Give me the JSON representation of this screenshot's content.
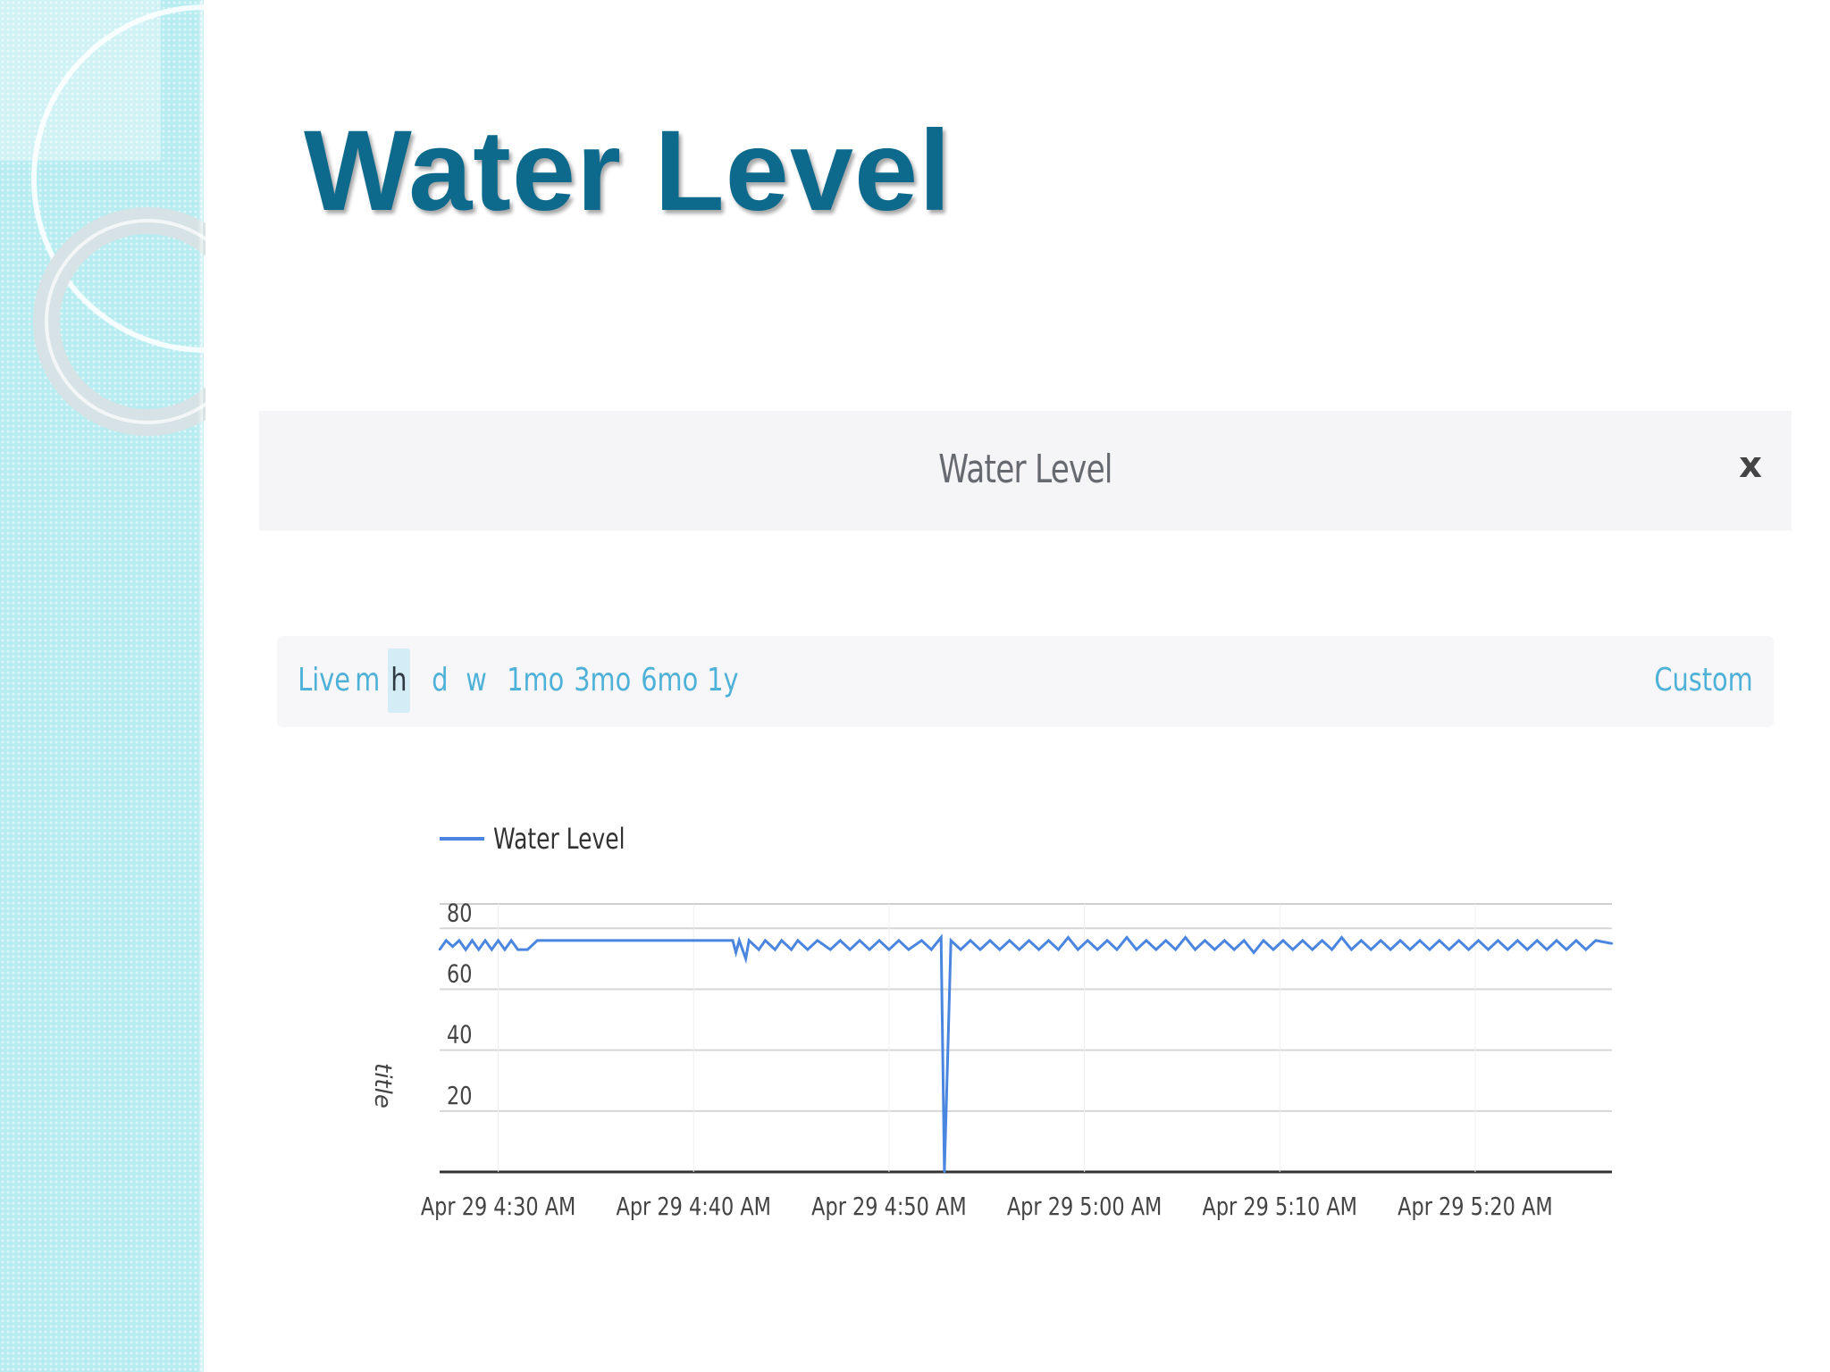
{
  "slide": {
    "title": "Water Level"
  },
  "panel": {
    "title": "Water Level",
    "close_label": "x"
  },
  "range_selector": {
    "options": [
      "Live",
      "m",
      "h",
      "d",
      "w",
      "1mo",
      "3mo",
      "6mo",
      "1y"
    ],
    "active": "h",
    "custom_label": "Custom"
  },
  "colors": {
    "title": "#0e6a8c",
    "series": "#4a86e0",
    "range_link": "#4db1d8",
    "side_band": "#b7ecf0"
  },
  "chart_data": {
    "type": "line",
    "title": "",
    "xlabel": "",
    "ylabel": "title",
    "legend": {
      "position": "top-left",
      "entries": [
        "Water Level"
      ]
    },
    "grid": true,
    "ylim": [
      0,
      88
    ],
    "yticks": [
      20,
      40,
      60,
      80
    ],
    "xlim": [
      "2024-04-29T04:27",
      "2024-04-29T05:27"
    ],
    "xticks": [
      {
        "t": "2024-04-29T04:30",
        "label": "Apr 29 4:30 AM"
      },
      {
        "t": "2024-04-29T04:40",
        "label": "Apr 29 4:40 AM"
      },
      {
        "t": "2024-04-29T04:50",
        "label": "Apr 29 4:50 AM"
      },
      {
        "t": "2024-04-29T05:00",
        "label": "Apr 29 5:00 AM"
      },
      {
        "t": "2024-04-29T05:10",
        "label": "Apr 29 5:10 AM"
      },
      {
        "t": "2024-04-29T05:20",
        "label": "Apr 29 5:20 AM"
      }
    ],
    "series": [
      {
        "name": "Water Level",
        "points": [
          [
            "2024-04-29T04:27:00",
            73
          ],
          [
            "2024-04-29T04:27:20",
            76
          ],
          [
            "2024-04-29T04:27:40",
            74
          ],
          [
            "2024-04-29T04:28:00",
            76
          ],
          [
            "2024-04-29T04:28:20",
            73
          ],
          [
            "2024-04-29T04:28:40",
            76
          ],
          [
            "2024-04-29T04:29:00",
            73
          ],
          [
            "2024-04-29T04:29:20",
            76
          ],
          [
            "2024-04-29T04:29:40",
            73
          ],
          [
            "2024-04-29T04:30:00",
            76
          ],
          [
            "2024-04-29T04:30:20",
            73
          ],
          [
            "2024-04-29T04:30:40",
            76
          ],
          [
            "2024-04-29T04:31:00",
            73
          ],
          [
            "2024-04-29T04:31:30",
            73
          ],
          [
            "2024-04-29T04:32:00",
            76
          ],
          [
            "2024-04-29T04:33:00",
            76
          ],
          [
            "2024-04-29T04:35:00",
            76
          ],
          [
            "2024-04-29T04:38:00",
            76
          ],
          [
            "2024-04-29T04:41:00",
            76
          ],
          [
            "2024-04-29T04:42:00",
            76
          ],
          [
            "2024-04-29T04:42:10",
            72
          ],
          [
            "2024-04-29T04:42:20",
            76
          ],
          [
            "2024-04-29T04:42:40",
            70
          ],
          [
            "2024-04-29T04:42:50",
            76
          ],
          [
            "2024-04-29T04:43:20",
            73
          ],
          [
            "2024-04-29T04:43:40",
            76
          ],
          [
            "2024-04-29T04:44:10",
            73
          ],
          [
            "2024-04-29T04:44:30",
            76
          ],
          [
            "2024-04-29T04:45:00",
            73
          ],
          [
            "2024-04-29T04:45:20",
            76
          ],
          [
            "2024-04-29T04:45:50",
            73
          ],
          [
            "2024-04-29T04:46:20",
            76
          ],
          [
            "2024-04-29T04:47:00",
            73
          ],
          [
            "2024-04-29T04:47:30",
            76
          ],
          [
            "2024-04-29T04:48:00",
            73
          ],
          [
            "2024-04-29T04:48:30",
            76
          ],
          [
            "2024-04-29T04:49:00",
            73
          ],
          [
            "2024-04-29T04:49:30",
            76
          ],
          [
            "2024-04-29T04:50:00",
            73
          ],
          [
            "2024-04-29T04:50:30",
            76
          ],
          [
            "2024-04-29T04:51:00",
            73
          ],
          [
            "2024-04-29T04:51:40",
            76
          ],
          [
            "2024-04-29T04:52:10",
            73
          ],
          [
            "2024-04-29T04:52:40",
            77
          ],
          [
            "2024-04-29T04:52:50",
            0
          ],
          [
            "2024-04-29T04:53:00",
            37
          ],
          [
            "2024-04-29T04:53:10",
            76
          ],
          [
            "2024-04-29T04:53:40",
            73
          ],
          [
            "2024-04-29T04:54:10",
            76
          ],
          [
            "2024-04-29T04:54:40",
            73
          ],
          [
            "2024-04-29T04:55:10",
            76
          ],
          [
            "2024-04-29T04:55:40",
            73
          ],
          [
            "2024-04-29T04:56:10",
            76
          ],
          [
            "2024-04-29T04:56:40",
            73
          ],
          [
            "2024-04-29T04:57:10",
            76
          ],
          [
            "2024-04-29T04:57:40",
            73
          ],
          [
            "2024-04-29T04:58:10",
            76
          ],
          [
            "2024-04-29T04:58:40",
            73
          ],
          [
            "2024-04-29T04:59:10",
            77
          ],
          [
            "2024-04-29T04:59:40",
            73
          ],
          [
            "2024-04-29T05:00:10",
            76
          ],
          [
            "2024-04-29T05:00:40",
            73
          ],
          [
            "2024-04-29T05:01:10",
            76
          ],
          [
            "2024-04-29T05:01:40",
            73
          ],
          [
            "2024-04-29T05:02:10",
            77
          ],
          [
            "2024-04-29T05:02:40",
            73
          ],
          [
            "2024-04-29T05:03:10",
            76
          ],
          [
            "2024-04-29T05:03:40",
            73
          ],
          [
            "2024-04-29T05:04:10",
            76
          ],
          [
            "2024-04-29T05:04:40",
            73
          ],
          [
            "2024-04-29T05:05:10",
            77
          ],
          [
            "2024-04-29T05:05:40",
            73
          ],
          [
            "2024-04-29T05:06:10",
            76
          ],
          [
            "2024-04-29T05:06:40",
            73
          ],
          [
            "2024-04-29T05:07:10",
            76
          ],
          [
            "2024-04-29T05:07:40",
            73
          ],
          [
            "2024-04-29T05:08:10",
            76
          ],
          [
            "2024-04-29T05:08:40",
            72
          ],
          [
            "2024-04-29T05:09:10",
            76
          ],
          [
            "2024-04-29T05:09:40",
            73
          ],
          [
            "2024-04-29T05:10:10",
            76
          ],
          [
            "2024-04-29T05:10:40",
            73
          ],
          [
            "2024-04-29T05:11:10",
            76
          ],
          [
            "2024-04-29T05:11:40",
            73
          ],
          [
            "2024-04-29T05:12:10",
            76
          ],
          [
            "2024-04-29T05:12:40",
            73
          ],
          [
            "2024-04-29T05:13:10",
            77
          ],
          [
            "2024-04-29T05:13:40",
            73
          ],
          [
            "2024-04-29T05:14:10",
            76
          ],
          [
            "2024-04-29T05:14:40",
            73
          ],
          [
            "2024-04-29T05:15:10",
            76
          ],
          [
            "2024-04-29T05:15:40",
            73
          ],
          [
            "2024-04-29T05:16:10",
            76
          ],
          [
            "2024-04-29T05:16:40",
            73
          ],
          [
            "2024-04-29T05:17:10",
            76
          ],
          [
            "2024-04-29T05:17:40",
            73
          ],
          [
            "2024-04-29T05:18:10",
            76
          ],
          [
            "2024-04-29T05:18:40",
            73
          ],
          [
            "2024-04-29T05:19:10",
            76
          ],
          [
            "2024-04-29T05:19:40",
            73
          ],
          [
            "2024-04-29T05:20:10",
            76
          ],
          [
            "2024-04-29T05:20:40",
            73
          ],
          [
            "2024-04-29T05:21:10",
            76
          ],
          [
            "2024-04-29T05:21:40",
            73
          ],
          [
            "2024-04-29T05:22:10",
            76
          ],
          [
            "2024-04-29T05:22:40",
            73
          ],
          [
            "2024-04-29T05:23:10",
            76
          ],
          [
            "2024-04-29T05:23:40",
            73
          ],
          [
            "2024-04-29T05:24:10",
            76
          ],
          [
            "2024-04-29T05:24:40",
            73
          ],
          [
            "2024-04-29T05:25:10",
            76
          ],
          [
            "2024-04-29T05:25:40",
            73
          ],
          [
            "2024-04-29T05:26:10",
            76
          ],
          [
            "2024-04-29T05:27:00",
            75
          ]
        ]
      }
    ]
  }
}
